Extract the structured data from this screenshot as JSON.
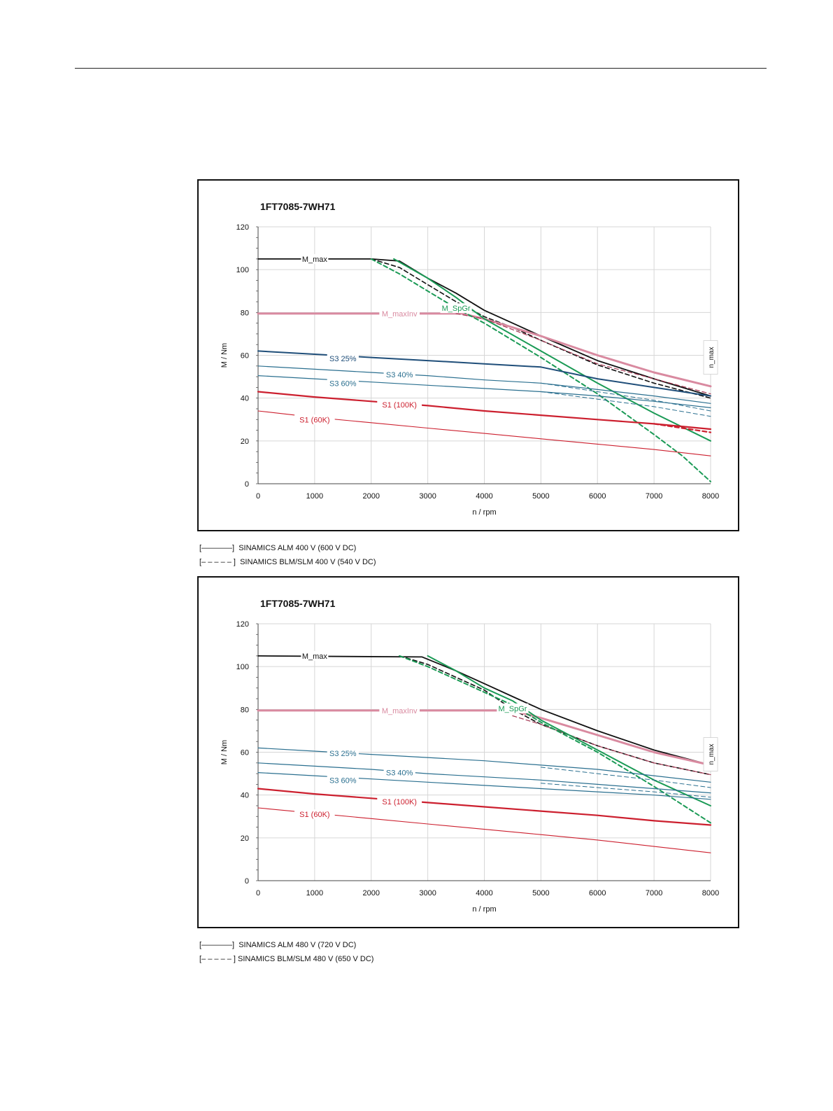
{
  "page": {
    "captions": [
      "[————]  SINAMICS ALM 400 V (600 V DC)",
      "[– – – – – ]  SINAMICS BLM/SLM 400 V (540 V DC)",
      "[————]  SINAMICS ALM 480 V (720 V DC)",
      "[– – – – – ] SINAMICS BLM/SLM 480 V (650 V DC)"
    ]
  },
  "chart_data": [
    {
      "type": "line",
      "title": "1FT7085-7WH71",
      "xlabel": "n / rpm",
      "ylabel": "M / Nm",
      "xlim": [
        0,
        8000
      ],
      "ylim": [
        0,
        120
      ],
      "xticks": [
        0,
        1000,
        2000,
        3000,
        4000,
        5000,
        6000,
        7000,
        8000
      ],
      "yticks": [
        0,
        20,
        40,
        60,
        80,
        100,
        120
      ],
      "grid": true,
      "vline_label": "n_max",
      "series": [
        {
          "name": "M_max",
          "color": "#111111",
          "width": 1.8,
          "dash": false,
          "label_at": [
            1000,
            105
          ],
          "x": [
            0,
            2000,
            2500,
            3000,
            3500,
            4000,
            4500,
            5000,
            6000,
            7000,
            8000
          ],
          "y": [
            105,
            105,
            104,
            96,
            89,
            81,
            75,
            69,
            57.5,
            49,
            41
          ]
        },
        {
          "name": "",
          "color": "#111111",
          "width": 1.6,
          "dash": true,
          "x": [
            2000,
            2500,
            3000,
            3500,
            4000,
            4500,
            5000,
            6000,
            7000,
            8000
          ],
          "y": [
            105,
            101,
            93,
            85,
            78,
            73,
            67,
            55.5,
            47,
            40
          ]
        },
        {
          "name": "M_maxInv",
          "color": "#d98aa0",
          "width": 3,
          "dash": false,
          "label_at": [
            2500,
            79.5
          ],
          "x": [
            0,
            3600,
            4000,
            4500,
            5000,
            6000,
            7000,
            8000
          ],
          "y": [
            79.5,
            79.5,
            77,
            73,
            69,
            60,
            52,
            45.5
          ]
        },
        {
          "name": "",
          "color": "#a63a55",
          "width": 1.2,
          "dash": true,
          "x": [
            3500,
            4000,
            4500,
            5000,
            6000,
            7000,
            8000
          ],
          "y": [
            79.5,
            77,
            72,
            67,
            56,
            49,
            42
          ]
        },
        {
          "name": "M_SpGr",
          "color": "#1a9a55",
          "width": 2,
          "dash": false,
          "label_at": [
            3500,
            82
          ],
          "x": [
            2400,
            3000,
            3500,
            4000,
            5000,
            6000,
            7000,
            8000
          ],
          "y": [
            105,
            96,
            87,
            77,
            62,
            47,
            33,
            20
          ]
        },
        {
          "name": "",
          "color": "#1a9a55",
          "width": 2,
          "dash": true,
          "x": [
            2000,
            2500,
            3000,
            3500,
            4000,
            5000,
            6000,
            7000,
            7500,
            8000
          ],
          "y": [
            105,
            98,
            90,
            82,
            75,
            59,
            42,
            23,
            13,
            1
          ]
        },
        {
          "name": "S3 25%",
          "color": "#1f4e79",
          "width": 2,
          "dash": false,
          "label_at": [
            1500,
            58.5
          ],
          "x": [
            0,
            1000,
            2000,
            3000,
            4000,
            5000,
            6000,
            7000,
            8000
          ],
          "y": [
            62,
            60.5,
            59,
            57.5,
            56,
            54.5,
            49,
            45,
            41
          ]
        },
        {
          "name": "S3 40%",
          "color": "#2a6f8f",
          "width": 1.2,
          "dash": false,
          "label_at": [
            2500,
            51
          ],
          "x": [
            0,
            1000,
            2000,
            3000,
            4000,
            5000,
            6000,
            7000,
            8000
          ],
          "y": [
            55,
            53.5,
            52,
            50.5,
            48.5,
            47,
            44,
            41,
            37.5
          ]
        },
        {
          "name": "",
          "color": "#2a6f8f",
          "width": 1,
          "dash": true,
          "x": [
            5000,
            6000,
            7000,
            8000
          ],
          "y": [
            47,
            43,
            39,
            34
          ]
        },
        {
          "name": "S3 60%",
          "color": "#2a6f8f",
          "width": 1.2,
          "dash": false,
          "label_at": [
            1500,
            47
          ],
          "x": [
            0,
            1000,
            2000,
            3000,
            4000,
            5000,
            6000,
            7000,
            8000
          ],
          "y": [
            50.5,
            49,
            47.5,
            46,
            44.5,
            43,
            41,
            38.5,
            35.5
          ]
        },
        {
          "name": "",
          "color": "#2a6f8f",
          "width": 1,
          "dash": true,
          "x": [
            5000,
            6000,
            7000,
            8000
          ],
          "y": [
            43,
            39.5,
            36,
            31.5
          ]
        },
        {
          "name": "S1 (100K)",
          "color": "#cc1f2e",
          "width": 2.2,
          "dash": false,
          "label_at": [
            2500,
            37
          ],
          "x": [
            0,
            1000,
            2000,
            3000,
            4000,
            5000,
            6000,
            7000,
            8000
          ],
          "y": [
            43,
            40.5,
            38.5,
            36.5,
            34,
            32,
            30,
            28,
            25.5
          ]
        },
        {
          "name": "",
          "color": "#cc1f2e",
          "width": 2.2,
          "dash": true,
          "x": [
            7000,
            7500,
            8000
          ],
          "y": [
            28,
            26,
            24
          ]
        },
        {
          "name": "S1 (60K)",
          "color": "#cc1f2e",
          "width": 1.1,
          "dash": false,
          "label_at": [
            1000,
            30
          ],
          "x": [
            0,
            1000,
            2000,
            3000,
            4000,
            5000,
            6000,
            7000,
            8000
          ],
          "y": [
            34,
            31,
            28.5,
            26,
            23.5,
            21,
            18.5,
            16,
            13
          ]
        }
      ]
    },
    {
      "type": "line",
      "title": "1FT7085-7WH71",
      "xlabel": "n / rpm",
      "ylabel": "M / Nm",
      "xlim": [
        0,
        8000
      ],
      "ylim": [
        0,
        120
      ],
      "xticks": [
        0,
        1000,
        2000,
        3000,
        4000,
        5000,
        6000,
        7000,
        8000
      ],
      "yticks": [
        0,
        20,
        40,
        60,
        80,
        100,
        120
      ],
      "grid": true,
      "vline_label": "n_max",
      "series": [
        {
          "name": "M_max",
          "color": "#111111",
          "width": 1.8,
          "dash": false,
          "label_at": [
            1000,
            105
          ],
          "x": [
            0,
            2900,
            3500,
            4000,
            4500,
            5000,
            6000,
            7000,
            8000
          ],
          "y": [
            105,
            104.5,
            98,
            92,
            86,
            80,
            70,
            61,
            54
          ]
        },
        {
          "name": "",
          "color": "#111111",
          "width": 1.6,
          "dash": true,
          "x": [
            2500,
            3000,
            3500,
            4000,
            4500,
            5000,
            6000,
            7000,
            8000
          ],
          "y": [
            105,
            101,
            95,
            89,
            80,
            73,
            63,
            55,
            49.5
          ]
        },
        {
          "name": "M_maxInv",
          "color": "#d98aa0",
          "width": 3,
          "dash": false,
          "label_at": [
            2500,
            79.5
          ],
          "x": [
            0,
            4500,
            5000,
            6000,
            7000,
            8000
          ],
          "y": [
            79.5,
            79.5,
            76,
            68,
            60,
            54
          ]
        },
        {
          "name": "",
          "color": "#a63a55",
          "width": 1.2,
          "dash": true,
          "x": [
            4500,
            5000,
            6000,
            7000,
            8000
          ],
          "y": [
            77,
            73,
            63,
            55,
            49.5
          ]
        },
        {
          "name": "M_SpGr",
          "color": "#1a9a55",
          "width": 2,
          "dash": false,
          "label_at": [
            4500,
            80.5
          ],
          "x": [
            3000,
            3500,
            4000,
            4500,
            5000,
            6000,
            7000,
            8000
          ],
          "y": [
            105,
            98,
            90,
            84,
            75,
            61,
            47,
            35
          ]
        },
        {
          "name": "",
          "color": "#1a9a55",
          "width": 2,
          "dash": true,
          "x": [
            2500,
            3000,
            3500,
            4000,
            4500,
            5000,
            6000,
            7000,
            8000
          ],
          "y": [
            105,
            100,
            94,
            88,
            82,
            74,
            60,
            44,
            27
          ]
        },
        {
          "name": "S3 25%",
          "color": "#2a6f8f",
          "width": 1.2,
          "dash": false,
          "label_at": [
            1500,
            59.5
          ],
          "x": [
            0,
            1000,
            2000,
            3000,
            4000,
            5000,
            6000,
            7000,
            8000
          ],
          "y": [
            62,
            60.5,
            59,
            57.5,
            56,
            54,
            52,
            49,
            46
          ]
        },
        {
          "name": "S3 40%",
          "color": "#2a6f8f",
          "width": 1.2,
          "dash": false,
          "label_at": [
            2500,
            50.5
          ],
          "x": [
            0,
            1000,
            2000,
            3000,
            4000,
            5000,
            6000,
            7000,
            8000
          ],
          "y": [
            55,
            53.5,
            52,
            50,
            48.5,
            47,
            45,
            43,
            41
          ]
        },
        {
          "name": "",
          "color": "#2a6f8f",
          "width": 1,
          "dash": true,
          "x": [
            5000,
            6000,
            7000,
            8000
          ],
          "y": [
            53,
            50,
            47,
            43.5
          ]
        },
        {
          "name": "S3 60%",
          "color": "#2a6f8f",
          "width": 1.2,
          "dash": false,
          "label_at": [
            1500,
            47
          ],
          "x": [
            0,
            1000,
            2000,
            3000,
            4000,
            5000,
            6000,
            7000,
            8000
          ],
          "y": [
            50.5,
            49,
            47.5,
            46,
            44.5,
            43,
            41.5,
            40,
            38
          ]
        },
        {
          "name": "",
          "color": "#2a6f8f",
          "width": 1,
          "dash": true,
          "x": [
            5000,
            6000,
            7000,
            8000
          ],
          "y": [
            45.5,
            43.5,
            41.5,
            39
          ]
        },
        {
          "name": "S1 (100K)",
          "color": "#cc1f2e",
          "width": 2.2,
          "dash": false,
          "label_at": [
            2500,
            37
          ],
          "x": [
            0,
            1000,
            2000,
            3000,
            4000,
            5000,
            6000,
            7000,
            8000
          ],
          "y": [
            43,
            40.5,
            38.5,
            36.5,
            34.5,
            32.5,
            30.5,
            28,
            26
          ]
        },
        {
          "name": "S1 (60K)",
          "color": "#cc1f2e",
          "width": 1.1,
          "dash": false,
          "label_at": [
            1000,
            31
          ],
          "x": [
            0,
            1000,
            2000,
            3000,
            4000,
            5000,
            6000,
            7000,
            8000
          ],
          "y": [
            34,
            31.5,
            29,
            26.5,
            24,
            21.5,
            19,
            16,
            13
          ]
        }
      ]
    }
  ]
}
